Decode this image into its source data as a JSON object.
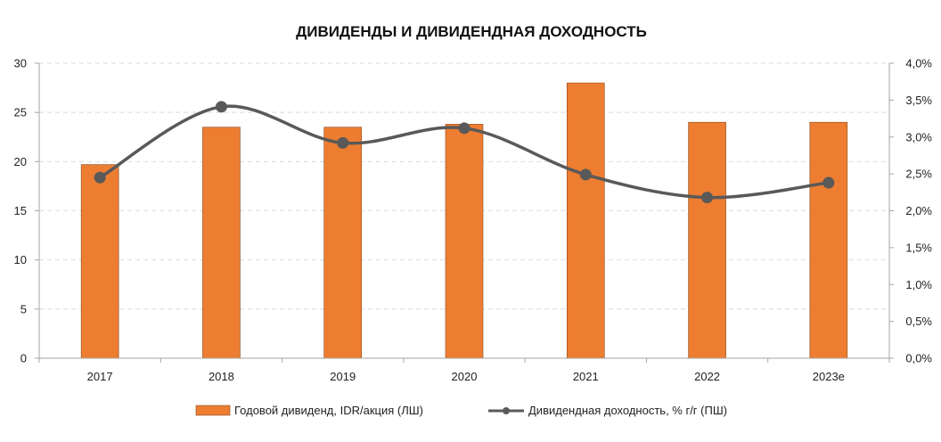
{
  "chart_data": {
    "type": "bar",
    "title": "ДИВИДЕНДЫ И ДИВИДЕНДНАЯ ДОХОДНОСТЬ",
    "categories": [
      "2017",
      "2018",
      "2019",
      "2020",
      "2021",
      "2022",
      "2023e"
    ],
    "series": [
      {
        "name": "Годовой дивиденд, IDR/акция (ЛШ)",
        "type": "bar",
        "axis": "left",
        "color": "#ED7D31",
        "values": [
          19.7,
          23.5,
          23.5,
          23.8,
          28.0,
          24.0,
          24.0
        ]
      },
      {
        "name": "Дивидендная доходность, % г/г (ПШ)",
        "type": "line",
        "axis": "right",
        "color": "#595959",
        "smooth": true,
        "values": [
          2.45,
          3.41,
          2.92,
          3.12,
          2.49,
          2.18,
          2.38
        ]
      }
    ],
    "y_left": {
      "min": 0,
      "max": 30,
      "step": 5,
      "tick_labels": [
        "0",
        "5",
        "10",
        "15",
        "20",
        "25",
        "30"
      ]
    },
    "y_right": {
      "min": 0,
      "max": 4,
      "step": 0.5,
      "tick_labels": [
        "0,0%",
        "0,5%",
        "1,0%",
        "1,5%",
        "2,0%",
        "2,5%",
        "3,0%",
        "3,5%",
        "4,0%"
      ]
    },
    "grid": true,
    "legend": "bottom"
  }
}
